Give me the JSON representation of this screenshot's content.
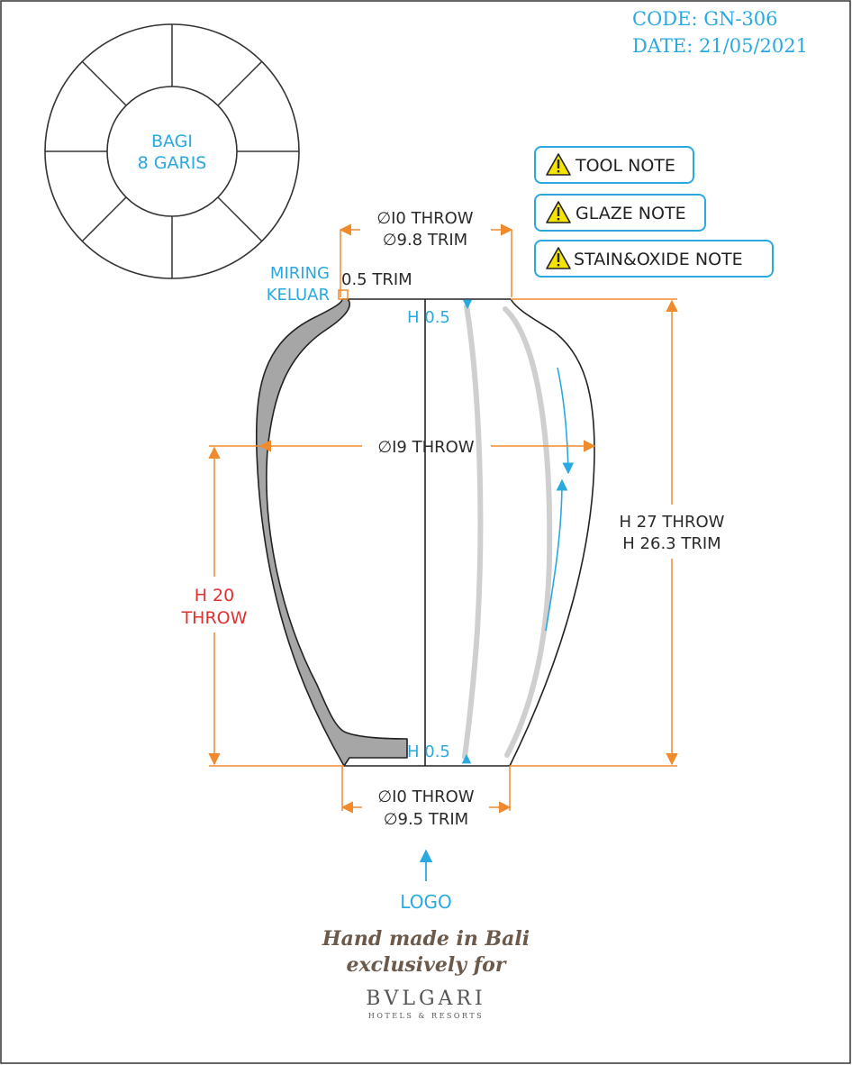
{
  "header": {
    "code": "CODE: GN-306",
    "date": "DATE: 21/05/2021"
  },
  "top_view": {
    "line1": "BAGI",
    "line2": "8 GARIS"
  },
  "notes": [
    {
      "label": "TOOL NOTE",
      "icon": "warning-icon"
    },
    {
      "label": "GLAZE NOTE",
      "icon": "warning-icon"
    },
    {
      "label": "STAIN&OXIDE NOTE",
      "icon": "warning-icon"
    }
  ],
  "dimensions": {
    "top_diameter_throw": "∅I0 THROW",
    "top_diameter_trim": "∅9.8 TRIM",
    "rim_trim": "0.5 TRIM",
    "rim_note_line1": "MIRING",
    "rim_note_line2": "KELUAR",
    "h_top": "H 0.5",
    "h_bottom": "H 0.5",
    "body_diameter": "∅I9 THROW",
    "height_throw": "H 27 THROW",
    "height_trim": "H 26.3 TRIM",
    "lower_height_line1": "H 20",
    "lower_height_line2": "THROW",
    "base_diameter_throw": "∅I0 THROW",
    "base_diameter_trim": "∅9.5 TRIM"
  },
  "footer": {
    "logo_label": "LOGO",
    "made_line1": "Hand made in Bali",
    "made_line2": "exclusively for",
    "brand": "BVLGARI",
    "brand_sub": "HOTELS & RESORTS"
  },
  "colors": {
    "accent_blue": "#29a9e0",
    "dimension_orange": "#f08a2c",
    "warning_red": "#e0302f",
    "warning_yellow": "#f5e400",
    "wall_gray": "#a6a6a6",
    "brown_text": "#6b5a4b"
  }
}
